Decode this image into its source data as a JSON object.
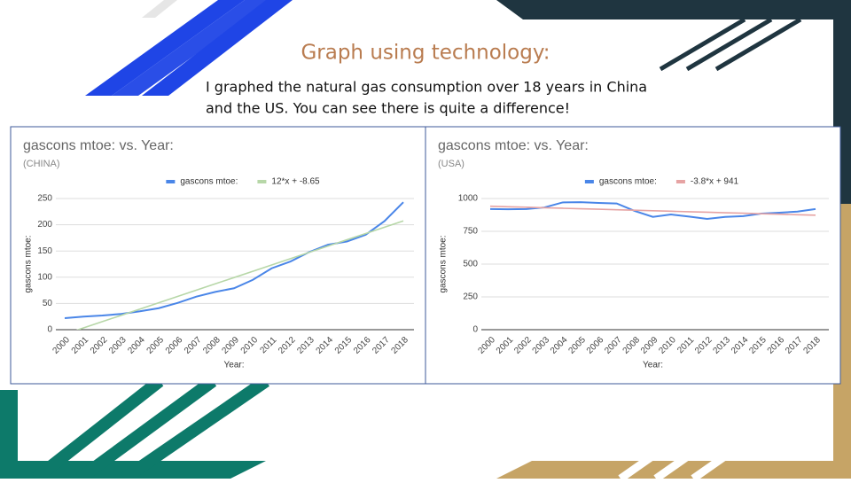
{
  "slide": {
    "title": "Graph using technology:",
    "text": [
      "I graphed the natural gas consumption over 18 years in China",
      "and the US. You can see there is quite a difference!"
    ]
  },
  "chart_data": [
    {
      "type": "line",
      "title": "gascons mtoe: vs. Year:",
      "subtitle": "(CHINA)",
      "x_label": "Year:",
      "y_label": "gascons mtoe:",
      "categories": [
        "2000",
        "2001",
        "2002",
        "2003",
        "2004",
        "2005",
        "2006",
        "2007",
        "2008",
        "2009",
        "2010",
        "2011",
        "2012",
        "2013",
        "2014",
        "2015",
        "2016",
        "2017",
        "2018"
      ],
      "series": [
        {
          "name": "gascons mtoe:",
          "color": "#4a86e8",
          "values": [
            22,
            25,
            27,
            30,
            35,
            41,
            51,
            63,
            72,
            79,
            95,
            117,
            130,
            148,
            162,
            168,
            181,
            207,
            243
          ]
        },
        {
          "name": "12*x + -8.65",
          "color": "#b7d7a8",
          "values": [
            -8.65,
            3.35,
            15.35,
            27.35,
            39.35,
            51.35,
            63.35,
            75.35,
            87.35,
            99.35,
            111.35,
            123.35,
            135.35,
            147.35,
            159.35,
            171.35,
            183.35,
            195.35,
            207.35
          ]
        }
      ],
      "ylim": [
        0,
        250
      ],
      "yticks": [
        0,
        50,
        100,
        150,
        200,
        250
      ],
      "grid": true,
      "legend": "top"
    },
    {
      "type": "line",
      "title": "gascons mtoe: vs. Year:",
      "subtitle": "(USA)",
      "x_label": "Year:",
      "y_label": "gascons mtoe:",
      "categories": [
        "2000",
        "2001",
        "2002",
        "2003",
        "2004",
        "2005",
        "2006",
        "2007",
        "2008",
        "2009",
        "2010",
        "2011",
        "2012",
        "2013",
        "2014",
        "2015",
        "2016",
        "2017",
        "2018"
      ],
      "series": [
        {
          "name": "gascons mtoe:",
          "color": "#4a86e8",
          "values": [
            920,
            918,
            920,
            932,
            970,
            972,
            966,
            962,
            905,
            860,
            878,
            862,
            845,
            860,
            866,
            885,
            892,
            900,
            920
          ]
        },
        {
          "name": "-3.8*x + 941",
          "color": "#e6a3a3",
          "values": [
            941,
            937.2,
            933.4,
            929.6,
            925.8,
            922,
            918.2,
            914.4,
            910.6,
            906.8,
            903,
            899.2,
            895.4,
            891.6,
            887.8,
            884,
            880.2,
            876.4,
            872.6
          ]
        }
      ],
      "ylim": [
        0,
        1000
      ],
      "yticks": [
        0,
        250,
        500,
        750,
        1000
      ],
      "grid": true,
      "legend": "top"
    }
  ]
}
